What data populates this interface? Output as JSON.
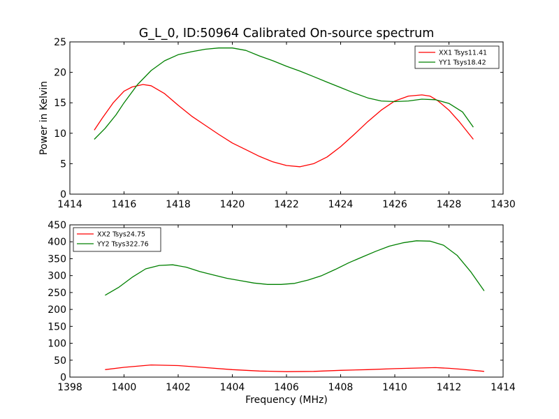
{
  "figure": {
    "title": "G_L_0, ID:50964 Calibrated On-source spectrum",
    "xlabel": "Frequency (MHz)"
  },
  "chart_data": [
    {
      "type": "line",
      "title": "G_L_0, ID:50964 Calibrated On-source spectrum",
      "xlabel": "",
      "ylabel": "Power in Kelvin",
      "xlim": [
        1414,
        1430
      ],
      "ylim": [
        0,
        25
      ],
      "xticks": [
        1414,
        1416,
        1418,
        1420,
        1422,
        1424,
        1426,
        1428,
        1430
      ],
      "yticks": [
        0,
        5,
        10,
        15,
        20,
        25
      ],
      "legend_position": "top-right",
      "grid": false,
      "series": [
        {
          "name": "XX1 Tsys11.41",
          "color": "#ff0000",
          "x": [
            1414.9,
            1415.2,
            1415.6,
            1416.0,
            1416.3,
            1416.7,
            1417.0,
            1417.5,
            1418.0,
            1418.5,
            1419.0,
            1419.5,
            1420.0,
            1420.5,
            1421.0,
            1421.5,
            1422.0,
            1422.5,
            1423.0,
            1423.5,
            1424.0,
            1424.5,
            1425.0,
            1425.5,
            1426.0,
            1426.5,
            1427.0,
            1427.3,
            1427.6,
            1428.0,
            1428.4,
            1428.9
          ],
          "values": [
            10.5,
            12.5,
            15.0,
            16.9,
            17.6,
            18.0,
            17.8,
            16.5,
            14.6,
            12.8,
            11.3,
            9.8,
            8.4,
            7.3,
            6.2,
            5.3,
            4.7,
            4.5,
            5.0,
            6.1,
            7.8,
            9.8,
            11.9,
            13.8,
            15.3,
            16.1,
            16.3,
            16.1,
            15.3,
            13.8,
            11.8,
            9.0
          ]
        },
        {
          "name": "YY1 Tsys18.42",
          "color": "#008000",
          "x": [
            1414.9,
            1415.3,
            1415.7,
            1416.0,
            1416.5,
            1417.0,
            1417.5,
            1418.0,
            1418.5,
            1419.0,
            1419.5,
            1420.0,
            1420.5,
            1421.0,
            1421.5,
            1422.0,
            1422.5,
            1423.0,
            1423.5,
            1424.0,
            1424.5,
            1425.0,
            1425.5,
            1426.0,
            1426.5,
            1427.0,
            1427.5,
            1428.0,
            1428.5,
            1428.9
          ],
          "values": [
            9.0,
            10.8,
            13.0,
            15.0,
            18.0,
            20.3,
            21.9,
            22.9,
            23.4,
            23.8,
            24.0,
            24.0,
            23.6,
            22.7,
            21.9,
            21.0,
            20.2,
            19.3,
            18.4,
            17.5,
            16.6,
            15.8,
            15.3,
            15.2,
            15.3,
            15.6,
            15.5,
            14.9,
            13.5,
            11.0
          ]
        }
      ]
    },
    {
      "type": "line",
      "title": "",
      "xlabel": "Frequency (MHz)",
      "ylabel": "",
      "xlim": [
        1398,
        1414
      ],
      "ylim": [
        0,
        450
      ],
      "xticks": [
        1398,
        1400,
        1402,
        1404,
        1406,
        1408,
        1410,
        1412,
        1414
      ],
      "yticks": [
        0,
        50,
        100,
        150,
        200,
        250,
        300,
        350,
        400,
        450
      ],
      "legend_position": "top-left",
      "grid": false,
      "series": [
        {
          "name": "XX2 Tsys24.75",
          "color": "#ff0000",
          "x": [
            1399.3,
            1400.0,
            1401.0,
            1402.0,
            1403.0,
            1404.0,
            1405.0,
            1406.0,
            1407.0,
            1408.0,
            1409.0,
            1410.0,
            1411.0,
            1411.5,
            1412.0,
            1412.5,
            1413.3
          ],
          "values": [
            22,
            29,
            36,
            34,
            28,
            22,
            18,
            16,
            17,
            20,
            22,
            25,
            27,
            28,
            26,
            23,
            17
          ]
        },
        {
          "name": "YY2 Tsys322.76",
          "color": "#008000",
          "x": [
            1399.3,
            1399.8,
            1400.3,
            1400.8,
            1401.3,
            1401.8,
            1402.3,
            1402.8,
            1403.3,
            1403.8,
            1404.3,
            1404.8,
            1405.3,
            1405.8,
            1406.3,
            1406.8,
            1407.3,
            1407.8,
            1408.3,
            1408.8,
            1409.3,
            1409.8,
            1410.3,
            1410.8,
            1411.3,
            1411.8,
            1412.3,
            1412.8,
            1413.3
          ],
          "values": [
            242,
            265,
            295,
            320,
            330,
            332,
            325,
            312,
            302,
            292,
            285,
            278,
            274,
            274,
            277,
            287,
            300,
            318,
            338,
            355,
            372,
            387,
            397,
            403,
            402,
            390,
            360,
            312,
            255
          ]
        }
      ]
    }
  ]
}
